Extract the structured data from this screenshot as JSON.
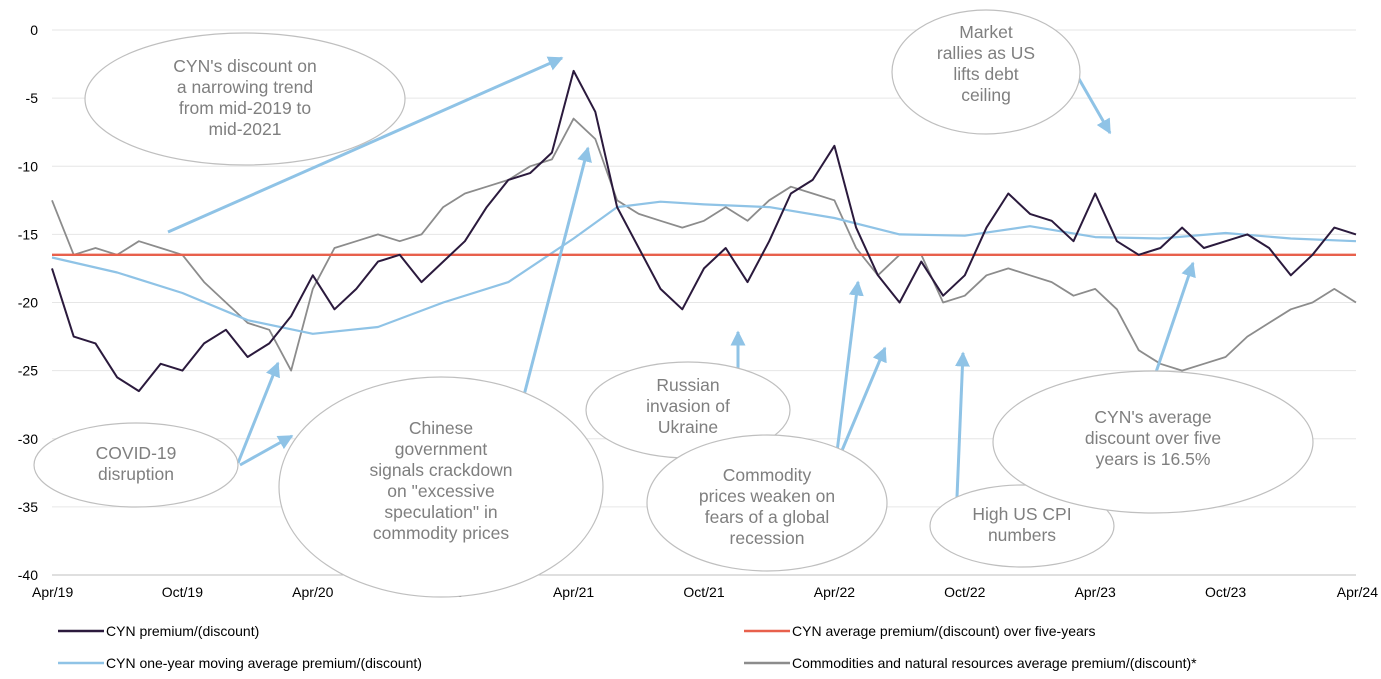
{
  "chart_data": {
    "type": "line",
    "title": "",
    "xlabel": "",
    "ylabel": "",
    "ylim": [
      -40,
      0
    ],
    "yticks": [
      0,
      -5,
      -10,
      -15,
      -20,
      -25,
      -30,
      -35,
      -40
    ],
    "xlim": [
      "2019-04",
      "2024-04"
    ],
    "xticks": [
      {
        "label": "Apr/19",
        "date": "2019-04"
      },
      {
        "label": "Oct/19",
        "date": "2019-10"
      },
      {
        "label": "Apr/20",
        "date": "2020-04"
      },
      {
        "label": "Oct/20",
        "date": "2020-10"
      },
      {
        "label": "Apr/21",
        "date": "2021-04"
      },
      {
        "label": "Oct/21",
        "date": "2021-10"
      },
      {
        "label": "Apr/22",
        "date": "2022-04"
      },
      {
        "label": "Oct/22",
        "date": "2022-10"
      },
      {
        "label": "Apr/23",
        "date": "2023-04"
      },
      {
        "label": "Oct/23",
        "date": "2023-10"
      },
      {
        "label": "Apr/24",
        "date": "2024-04"
      }
    ],
    "grid": true,
    "legend_position": "bottom",
    "series": [
      {
        "name": "CYN premium/(discount)",
        "color": "#2b1a3d",
        "points": [
          [
            "2019-04",
            -17.5
          ],
          [
            "2019-05",
            -22.5
          ],
          [
            "2019-06",
            -23.0
          ],
          [
            "2019-07",
            -25.5
          ],
          [
            "2019-08",
            -26.5
          ],
          [
            "2019-09",
            -24.5
          ],
          [
            "2019-10",
            -25.0
          ],
          [
            "2019-11",
            -23.0
          ],
          [
            "2019-12",
            -22.0
          ],
          [
            "2020-01",
            -24.0
          ],
          [
            "2020-02",
            -23.0
          ],
          [
            "2020-03",
            -21.0
          ],
          [
            "2020-04",
            -18.0
          ],
          [
            "2020-05",
            -20.5
          ],
          [
            "2020-06",
            -19.0
          ],
          [
            "2020-07",
            -17.0
          ],
          [
            "2020-08",
            -16.5
          ],
          [
            "2020-09",
            -18.5
          ],
          [
            "2020-10",
            -17.0
          ],
          [
            "2020-11",
            -15.5
          ],
          [
            "2020-12",
            -13.0
          ],
          [
            "2021-01",
            -11.0
          ],
          [
            "2021-02",
            -10.5
          ],
          [
            "2021-03",
            -9.0
          ],
          [
            "2021-04",
            -3.0
          ],
          [
            "2021-05",
            -6.0
          ],
          [
            "2021-06",
            -13.0
          ],
          [
            "2021-07",
            -16.0
          ],
          [
            "2021-08",
            -19.0
          ],
          [
            "2021-09",
            -20.5
          ],
          [
            "2021-10",
            -17.5
          ],
          [
            "2021-11",
            -16.0
          ],
          [
            "2021-12",
            -18.5
          ],
          [
            "2022-01",
            -15.5
          ],
          [
            "2022-02",
            -12.0
          ],
          [
            "2022-03",
            -11.0
          ],
          [
            "2022-04",
            -8.5
          ],
          [
            "2022-05",
            -14.5
          ],
          [
            "2022-06",
            -18.0
          ],
          [
            "2022-07",
            -20.0
          ],
          [
            "2022-08",
            -17.0
          ],
          [
            "2022-09",
            -19.5
          ],
          [
            "2022-10",
            -18.0
          ],
          [
            "2022-11",
            -14.5
          ],
          [
            "2022-12",
            -12.0
          ],
          [
            "2023-01",
            -13.5
          ],
          [
            "2023-02",
            -14.0
          ],
          [
            "2023-03",
            -15.5
          ],
          [
            "2023-04",
            -12.0
          ],
          [
            "2023-05",
            -15.5
          ],
          [
            "2023-06",
            -16.5
          ],
          [
            "2023-07",
            -16.0
          ],
          [
            "2023-08",
            -14.5
          ],
          [
            "2023-09",
            -16.0
          ],
          [
            "2023-10",
            -15.5
          ],
          [
            "2023-11",
            -15.0
          ],
          [
            "2023-12",
            -16.0
          ],
          [
            "2024-01",
            -18.0
          ],
          [
            "2024-02",
            -16.5
          ],
          [
            "2024-03",
            -14.5
          ],
          [
            "2024-04",
            -15.0
          ]
        ]
      },
      {
        "name": "CYN one-year moving average premium/(discount)",
        "color": "#8fc3e6",
        "points": [
          [
            "2019-04",
            -16.7
          ],
          [
            "2019-07",
            -17.8
          ],
          [
            "2019-10",
            -19.3
          ],
          [
            "2020-01",
            -21.3
          ],
          [
            "2020-04",
            -22.3
          ],
          [
            "2020-07",
            -21.8
          ],
          [
            "2020-10",
            -20.0
          ],
          [
            "2021-01",
            -18.5
          ],
          [
            "2021-04",
            -15.3
          ],
          [
            "2021-06",
            -13.0
          ],
          [
            "2021-08",
            -12.6
          ],
          [
            "2021-10",
            -12.8
          ],
          [
            "2022-01",
            -13.0
          ],
          [
            "2022-04",
            -13.8
          ],
          [
            "2022-07",
            -15.0
          ],
          [
            "2022-10",
            -15.1
          ],
          [
            "2023-01",
            -14.4
          ],
          [
            "2023-04",
            -15.2
          ],
          [
            "2023-07",
            -15.3
          ],
          [
            "2023-10",
            -14.9
          ],
          [
            "2024-01",
            -15.3
          ],
          [
            "2024-04",
            -15.5
          ]
        ]
      },
      {
        "name": "CYN average premium/(discount) over five-years",
        "color": "#e8604c",
        "points": [
          [
            "2019-04",
            -16.5
          ],
          [
            "2024-04",
            -16.5
          ]
        ]
      },
      {
        "name": "Commodities and natural resources average premium/(discount)*",
        "color": "#8c8c8c",
        "points": [
          [
            "2019-04",
            -12.5
          ],
          [
            "2019-05",
            -16.5
          ],
          [
            "2019-06",
            -16.0
          ],
          [
            "2019-07",
            -16.5
          ],
          [
            "2019-08",
            -15.5
          ],
          [
            "2019-09",
            -16.0
          ],
          [
            "2019-10",
            -16.5
          ],
          [
            "2019-11",
            -18.5
          ],
          [
            "2019-12",
            -20.0
          ],
          [
            "2020-01",
            -21.5
          ],
          [
            "2020-02",
            -22.0
          ],
          [
            "2020-03",
            -25.0
          ],
          [
            "2020-04",
            -19.0
          ],
          [
            "2020-05",
            -16.0
          ],
          [
            "2020-06",
            -15.5
          ],
          [
            "2020-07",
            -15.0
          ],
          [
            "2020-08",
            -15.5
          ],
          [
            "2020-09",
            -15.0
          ],
          [
            "2020-10",
            -13.0
          ],
          [
            "2020-11",
            -12.0
          ],
          [
            "2020-12",
            -11.5
          ],
          [
            "2021-01",
            -11.0
          ],
          [
            "2021-02",
            -10.0
          ],
          [
            "2021-03",
            -9.5
          ],
          [
            "2021-04",
            -6.5
          ],
          [
            "2021-05",
            -8.0
          ],
          [
            "2021-06",
            -12.5
          ],
          [
            "2021-07",
            -13.5
          ],
          [
            "2021-08",
            -14.0
          ],
          [
            "2021-09",
            -14.5
          ],
          [
            "2021-10",
            -14.0
          ],
          [
            "2021-11",
            -13.0
          ],
          [
            "2021-12",
            -14.0
          ],
          [
            "2022-01",
            -12.5
          ],
          [
            "2022-02",
            -11.5
          ],
          [
            "2022-03",
            -12.0
          ],
          [
            "2022-04",
            -12.5
          ],
          [
            "2022-05",
            -16.0
          ],
          [
            "2022-06",
            -18.0
          ],
          [
            "2022-07",
            -16.5
          ],
          [
            "2022-08",
            -16.5
          ],
          [
            "2022-09",
            -20.0
          ],
          [
            "2022-10",
            -19.5
          ],
          [
            "2022-11",
            -18.0
          ],
          [
            "2022-12",
            -17.5
          ],
          [
            "2023-01",
            -18.0
          ],
          [
            "2023-02",
            -18.5
          ],
          [
            "2023-03",
            -19.5
          ],
          [
            "2023-04",
            -19.0
          ],
          [
            "2023-05",
            -20.5
          ],
          [
            "2023-06",
            -23.5
          ],
          [
            "2023-07",
            -24.5
          ],
          [
            "2023-08",
            -25.0
          ],
          [
            "2023-09",
            -24.5
          ],
          [
            "2023-10",
            -24.0
          ],
          [
            "2023-11",
            -22.5
          ],
          [
            "2023-12",
            -21.5
          ],
          [
            "2024-01",
            -20.5
          ],
          [
            "2024-02",
            -20.0
          ],
          [
            "2024-03",
            -19.0
          ],
          [
            "2024-04",
            -20.0
          ]
        ]
      }
    ],
    "annotations": [
      {
        "text": "CYN's discount on a narrowing trend from mid-2019 to mid-2021",
        "lines": [
          "CYN's discount on",
          "a narrowing trend",
          "from mid-2019 to",
          "mid-2021"
        ]
      },
      {
        "text": "COVID-19 disruption",
        "lines": [
          "COVID-19",
          "disruption"
        ]
      },
      {
        "text": "Chinese government signals crackdown on \"excessive speculation\" in commodity prices",
        "lines": [
          "Chinese",
          "government",
          "signals crackdown",
          "on \"excessive",
          "speculation\" in",
          "commodity prices"
        ]
      },
      {
        "text": "Russian invasion of Ukraine",
        "lines": [
          "Russian",
          "invasion of",
          "Ukraine"
        ]
      },
      {
        "text": "Commodity prices weaken on fears of a global recession",
        "lines": [
          "Commodity",
          "prices weaken on",
          "fears of a global",
          "recession"
        ]
      },
      {
        "text": "Market rallies as US lifts debt ceiling",
        "lines": [
          "Market",
          "rallies as US",
          "lifts debt",
          "ceiling"
        ]
      },
      {
        "text": "High US CPI numbers",
        "lines": [
          "High US CPI",
          "numbers"
        ]
      },
      {
        "text": "CYN's average discount over five years is 16.5%",
        "lines": [
          "CYN's average",
          "discount over five",
          "years is 16.5%"
        ]
      }
    ]
  }
}
